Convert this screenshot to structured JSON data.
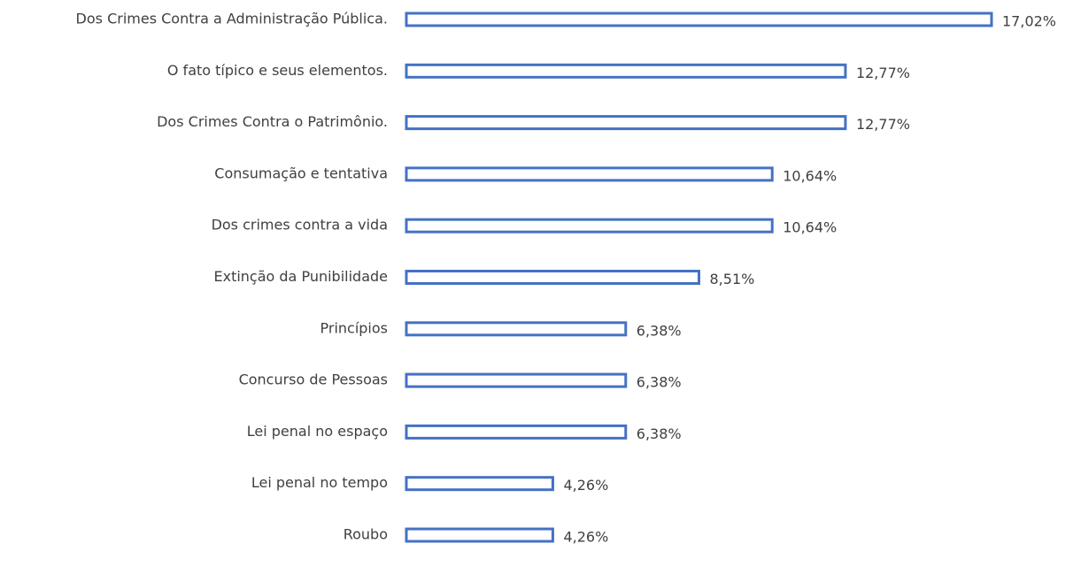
{
  "chart_data": {
    "type": "bar",
    "orientation": "horizontal",
    "categories": [
      "Dos Crimes Contra a Administração Pública.",
      "O fato típico e seus elementos.",
      "Dos Crimes Contra o Patrimônio.",
      "Consumação e tentativa",
      "Dos crimes contra a vida",
      "Extinção da Punibilidade",
      "Princípios",
      "Concurso de Pessoas",
      "Lei penal no espaço",
      "Lei penal no tempo",
      "Roubo"
    ],
    "values": [
      17.02,
      12.77,
      12.77,
      10.64,
      10.64,
      8.51,
      6.38,
      6.38,
      6.38,
      4.26,
      4.26
    ],
    "value_labels": [
      "17,02%",
      "12,77%",
      "12,77%",
      "10,64%",
      "10,64%",
      "8,51%",
      "6,38%",
      "6,38%",
      "6,38%",
      "4,26%",
      "4,26%"
    ],
    "color": "#4472c4"
  }
}
